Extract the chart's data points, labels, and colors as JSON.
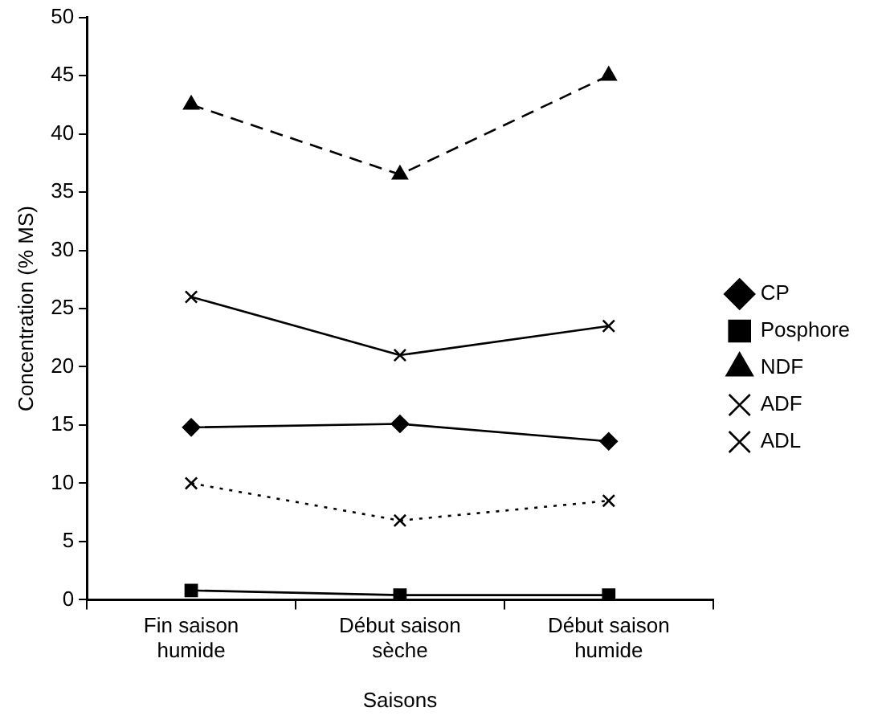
{
  "chart_data": {
    "type": "line",
    "xlabel": "Saisons",
    "ylabel": "Concentration (% MS)",
    "categories": [
      "Fin saison humide",
      "Début saison sèche",
      "Début saison humide"
    ],
    "ylim": [
      0,
      50
    ],
    "yticks": [
      0,
      5,
      10,
      15,
      20,
      25,
      30,
      35,
      40,
      45,
      50
    ],
    "grid": false,
    "legend": "right",
    "series": [
      {
        "name": "CP",
        "color": "#000000",
        "marker": "diamond",
        "line_style": "solid",
        "values": [
          14.8,
          15.1,
          13.6
        ]
      },
      {
        "name": "Posphore",
        "color": "#000000",
        "marker": "square",
        "line_style": "solid",
        "values": [
          0.8,
          0.4,
          0.4
        ]
      },
      {
        "name": "NDF",
        "color": "#000000",
        "marker": "triangle",
        "line_style": "dashed",
        "values": [
          42.5,
          36.5,
          45
        ]
      },
      {
        "name": "ADF",
        "color": "#000000",
        "marker": "cross",
        "line_style": "solid",
        "values": [
          26,
          21,
          23.5
        ]
      },
      {
        "name": "ADL",
        "color": "#000000",
        "marker": "cross",
        "line_style": "dotted",
        "values": [
          10,
          6.8,
          8.5
        ]
      }
    ]
  }
}
